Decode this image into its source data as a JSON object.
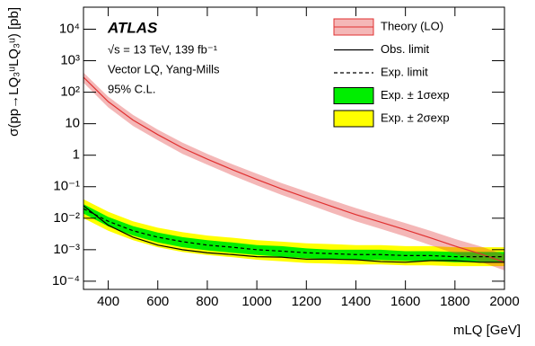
{
  "chart_data": {
    "type": "line",
    "xlabel": "mLQ [GeV]",
    "ylabel": "σ(pp→LQ₃ᵘLQ₃ᵘ) [pb]",
    "annotations": [
      "ATLAS",
      "√s = 13 TeV, 139 fb⁻¹",
      "Vector LQ, Yang-Mills",
      "95% C.L."
    ],
    "log_y": true,
    "legend": "upper right",
    "xlim": [
      300,
      2000
    ],
    "xticks": [
      400,
      600,
      800,
      1000,
      1200,
      1400,
      1600,
      1800,
      2000
    ],
    "ylim": [
      5.5e-05,
      50000
    ],
    "yticks": [
      {
        "value": 0.0001,
        "label": "10⁻⁴"
      },
      {
        "value": 0.001,
        "label": "10⁻³"
      },
      {
        "value": 0.01,
        "label": "10⁻²"
      },
      {
        "value": 0.1,
        "label": "10⁻¹"
      },
      1,
      10,
      {
        "value": 100,
        "label": "10²"
      },
      {
        "value": 1000,
        "label": "10³"
      },
      {
        "value": 10000,
        "label": "10⁴"
      }
    ],
    "x": [
      300,
      400,
      500,
      600,
      700,
      800,
      900,
      1000,
      1100,
      1200,
      1300,
      1400,
      1500,
      1600,
      1700,
      1800,
      1900,
      2000
    ],
    "series": [
      {
        "name": "Theory (LO)",
        "color": "#e03030",
        "style": "solid",
        "values": [
          300,
          50,
          13,
          4.5,
          1.7,
          0.75,
          0.35,
          0.17,
          0.085,
          0.045,
          0.024,
          0.013,
          0.0075,
          0.0043,
          0.0024,
          0.0013,
          0.00075,
          0.0004
        ],
        "low": [
          200,
          33,
          8.5,
          3,
          1.1,
          0.5,
          0.23,
          0.11,
          0.055,
          0.029,
          0.015,
          0.008,
          0.0046,
          0.0026,
          0.0014,
          0.00075,
          0.00042,
          0.00022
        ],
        "high": [
          420,
          72,
          19,
          6.5,
          2.5,
          1.1,
          0.52,
          0.26,
          0.13,
          0.07,
          0.038,
          0.021,
          0.012,
          0.007,
          0.004,
          0.0022,
          0.0013,
          0.0007
        ]
      },
      {
        "name": "Obs. limit",
        "color": "#000000",
        "style": "solid",
        "values": [
          0.025,
          0.006,
          0.0025,
          0.0014,
          0.001,
          0.0008,
          0.0007,
          0.0006,
          0.00058,
          0.0005,
          0.0005,
          0.00048,
          0.00042,
          0.0004,
          0.00045,
          0.00045,
          0.0004,
          0.0004
        ]
      },
      {
        "name": "Exp. limit",
        "color": "#000000",
        "style": "dashed",
        "values": [
          0.02,
          0.008,
          0.004,
          0.0025,
          0.0018,
          0.0014,
          0.0012,
          0.001,
          0.0009,
          0.0008,
          0.00075,
          0.0007,
          0.0007,
          0.00065,
          0.00065,
          0.0006,
          0.0006,
          0.0006
        ]
      },
      {
        "name": "Exp. ± 1σexp",
        "color": "#00ee00",
        "style": "band",
        "low": [
          0.014,
          0.0055,
          0.0028,
          0.0017,
          0.0012,
          0.00095,
          0.0008,
          0.00068,
          0.0006,
          0.00054,
          0.0005,
          0.00047,
          0.00047,
          0.00044,
          0.00044,
          0.0004,
          0.0004,
          0.0004
        ],
        "high": [
          0.028,
          0.011,
          0.0056,
          0.0035,
          0.0025,
          0.002,
          0.0017,
          0.0014,
          0.0013,
          0.0011,
          0.001,
          0.001,
          0.001,
          0.0009,
          0.0009,
          0.00085,
          0.00085,
          0.00085
        ]
      },
      {
        "name": "Exp. ± 2σexp",
        "color": "#ffff00",
        "style": "band",
        "low": [
          0.01,
          0.004,
          0.002,
          0.0012,
          0.00085,
          0.00068,
          0.00058,
          0.00048,
          0.00043,
          0.00038,
          0.00036,
          0.00034,
          0.00034,
          0.00032,
          0.00032,
          0.0003,
          0.0003,
          0.0003
        ],
        "high": [
          0.04,
          0.016,
          0.008,
          0.005,
          0.0036,
          0.0028,
          0.0024,
          0.002,
          0.0018,
          0.0016,
          0.0015,
          0.0014,
          0.0014,
          0.0013,
          0.0013,
          0.0012,
          0.0012,
          0.0012
        ]
      }
    ]
  }
}
